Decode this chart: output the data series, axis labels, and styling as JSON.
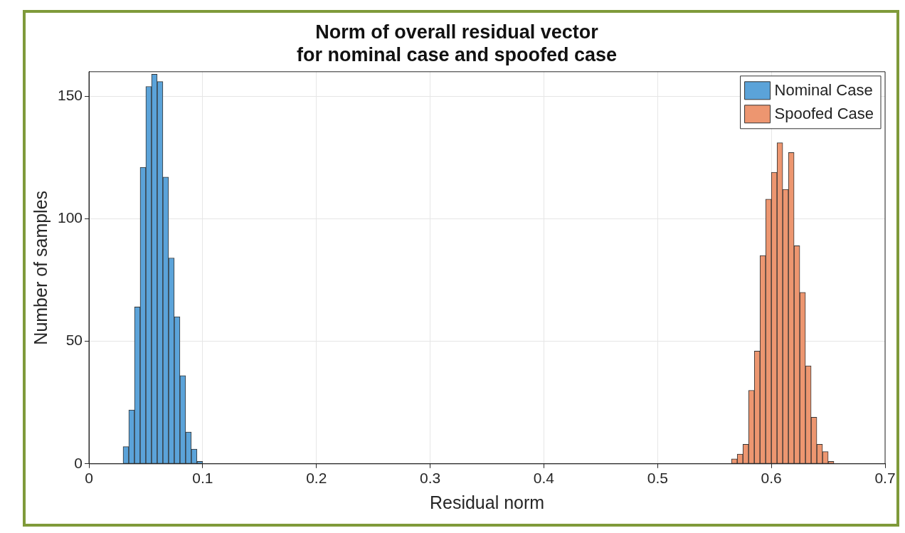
{
  "chart_data": {
    "type": "histogram",
    "title": "Norm of overall residual vector\nfor nominal case and spoofed case",
    "xlabel": "Residual norm",
    "ylabel": "Number of samples",
    "bins": [
      0.03,
      0.035,
      0.04,
      0.045,
      0.05,
      0.055,
      0.06,
      0.065,
      0.07,
      0.075,
      0.08,
      0.085,
      0.09,
      0.095,
      0.1,
      0.105,
      0.11,
      0.115,
      0.12,
      0.125,
      0.13,
      0.135,
      0.14,
      0.145,
      0.15,
      0.155,
      0.16,
      0.165,
      0.17,
      0.175,
      0.18,
      0.185,
      0.19,
      0.195,
      0.2,
      0.205,
      0.21,
      0.215,
      0.22,
      0.225,
      0.23,
      0.235,
      0.24,
      0.245,
      0.25,
      0.255,
      0.26,
      0.265,
      0.27,
      0.275,
      0.28,
      0.285,
      0.29,
      0.295,
      0.3,
      0.305,
      0.31,
      0.315,
      0.32,
      0.325,
      0.33,
      0.335,
      0.34,
      0.345,
      0.35,
      0.355,
      0.36,
      0.365,
      0.37,
      0.375,
      0.38,
      0.385,
      0.39,
      0.395,
      0.4,
      0.405,
      0.41,
      0.415,
      0.42,
      0.425,
      0.43,
      0.435,
      0.44,
      0.445,
      0.45,
      0.455,
      0.46,
      0.465,
      0.47,
      0.475,
      0.48,
      0.485,
      0.49,
      0.495,
      0.5,
      0.505,
      0.51,
      0.515,
      0.52,
      0.525,
      0.53,
      0.535,
      0.54,
      0.545,
      0.55,
      0.555,
      0.56,
      0.565,
      0.57,
      0.575,
      0.58,
      0.585,
      0.59,
      0.595,
      0.6,
      0.605,
      0.61,
      0.615,
      0.62,
      0.625,
      0.63,
      0.635,
      0.64,
      0.645,
      0.65,
      0.655
    ],
    "series": [
      {
        "name": "Nominal Case",
        "color": "#5ba3d9",
        "values": [
          7,
          22,
          64,
          121,
          154,
          159,
          156,
          117,
          84,
          60,
          36,
          13,
          6,
          1,
          null,
          null,
          null,
          null,
          null,
          null,
          null,
          null,
          null,
          null,
          null,
          null,
          null,
          null,
          null,
          null,
          null,
          null,
          null,
          null,
          null,
          null,
          null,
          null,
          null,
          null,
          null,
          null,
          null,
          null,
          null,
          null,
          null,
          null,
          null,
          null,
          null,
          null,
          null,
          null,
          null,
          null,
          null,
          null,
          null,
          null,
          null,
          null,
          null,
          null,
          null,
          null,
          null,
          null,
          null,
          null,
          null,
          null,
          null,
          null,
          null,
          null,
          null,
          null,
          null,
          null,
          null,
          null,
          null,
          null,
          null,
          null,
          null,
          null,
          null,
          null,
          null,
          null,
          null,
          null,
          null,
          null,
          null,
          null,
          null,
          null,
          null,
          null,
          null,
          null,
          null,
          null,
          null,
          null,
          null,
          null,
          null,
          null,
          null,
          null,
          null,
          null,
          null,
          null,
          null,
          null,
          null,
          null,
          null,
          null,
          null
        ]
      },
      {
        "name": "Spoofed Case",
        "color": "#ed9670",
        "values": [
          null,
          null,
          null,
          null,
          null,
          null,
          null,
          null,
          null,
          null,
          null,
          null,
          null,
          null,
          null,
          null,
          null,
          null,
          null,
          null,
          null,
          null,
          null,
          null,
          null,
          null,
          null,
          null,
          null,
          null,
          null,
          null,
          null,
          null,
          null,
          null,
          null,
          null,
          null,
          null,
          null,
          null,
          null,
          null,
          null,
          null,
          null,
          null,
          null,
          null,
          null,
          null,
          null,
          null,
          null,
          null,
          null,
          null,
          null,
          null,
          null,
          null,
          null,
          null,
          null,
          null,
          null,
          null,
          null,
          null,
          null,
          null,
          null,
          null,
          null,
          null,
          null,
          null,
          null,
          null,
          null,
          null,
          null,
          null,
          null,
          null,
          null,
          null,
          null,
          null,
          null,
          null,
          null,
          null,
          null,
          null,
          null,
          null,
          null,
          null,
          null,
          null,
          null,
          null,
          null,
          null,
          null,
          2,
          4,
          8,
          30,
          46,
          85,
          108,
          119,
          131,
          112,
          127,
          89,
          70,
          40,
          19,
          8,
          5,
          1
        ]
      }
    ],
    "xlim": [
      0,
      0.7
    ],
    "xticks": [
      0,
      0.1,
      0.2,
      0.3,
      0.4,
      0.5,
      0.6,
      0.7
    ],
    "ylim": [
      0,
      160
    ],
    "yticks": [
      0,
      50,
      100,
      150
    ],
    "grid": true,
    "legend": "top right"
  }
}
